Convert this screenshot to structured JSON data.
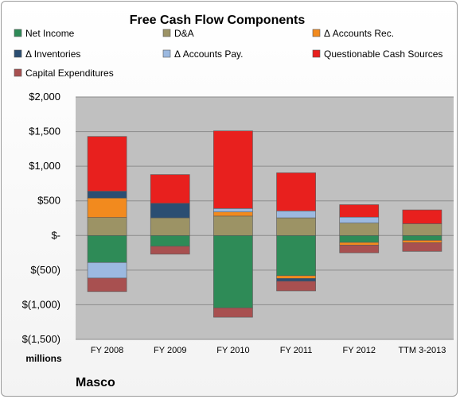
{
  "chart_data": {
    "type": "stacked-bar",
    "title": "Free Cash Flow Components",
    "unit_label": "millions",
    "company": "Masco",
    "categories": [
      "FY 2008",
      "FY 2009",
      "FY 2010",
      "FY 2011",
      "FY 2012",
      "TTM 3-2013"
    ],
    "ylim": [
      -1500,
      2000
    ],
    "yticks": [
      2000,
      1500,
      1000,
      500,
      0,
      -500,
      -1000,
      -1500
    ],
    "ytick_labels": [
      "$2,000",
      "$1,500",
      "$1,000",
      "$500",
      "$-",
      "$(500)",
      "$(1,000)",
      "$(1,500)"
    ],
    "grid": true,
    "legend_position": "top",
    "series": [
      {
        "name": "Net Income",
        "color": "#2e8b57",
        "values": [
          -390,
          -155,
          -1045,
          -580,
          -100,
          -70
        ]
      },
      {
        "name": "D&A",
        "color": "#9c9365",
        "values": [
          260,
          255,
          280,
          255,
          180,
          170
        ]
      },
      {
        "name": "Δ Accounts Rec.",
        "color": "#f28a1e",
        "values": [
          280,
          0,
          60,
          -40,
          -40,
          -35
        ]
      },
      {
        "name": "Δ Inventories",
        "color": "#2b4e72",
        "values": [
          100,
          210,
          0,
          -40,
          0,
          0
        ]
      },
      {
        "name": "Δ Accounts Pay.",
        "color": "#9cb9e0",
        "values": [
          -225,
          0,
          50,
          100,
          85,
          0
        ]
      },
      {
        "name": "Questionable Cash Sources",
        "color": "#e8201e",
        "values": [
          790,
          415,
          1120,
          550,
          180,
          200
        ]
      },
      {
        "name": "Capital Expenditures",
        "color": "#a85050",
        "values": [
          -195,
          -115,
          -135,
          -140,
          -110,
          -125
        ]
      }
    ]
  }
}
